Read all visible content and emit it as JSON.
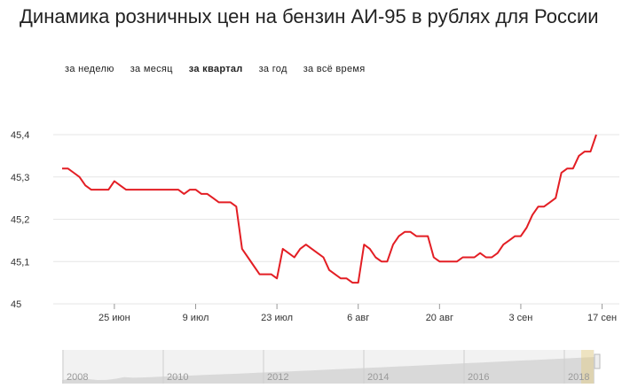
{
  "title": "Динамика розничных цен на бензин АИ-95 в рублях для России",
  "tabs": [
    "за неделю",
    "за месяц",
    "за квартал",
    "за год",
    "за всё время"
  ],
  "active_tab": 2,
  "navigator": {
    "years": [
      "2008",
      "2010",
      "2012",
      "2014",
      "2016",
      "2018"
    ]
  },
  "colors": {
    "line": "#e31e24",
    "grid": "#e6e6e6",
    "navigator_fill": "#d9d9d9"
  },
  "chart_data": {
    "type": "line",
    "title": "Динамика розничных цен на бензин АИ-95 в рублях для России",
    "xlabel": "",
    "ylabel": "",
    "ylim": [
      45.0,
      45.4
    ],
    "yticks": [
      "45",
      "45,1",
      "45,2",
      "45,3",
      "45,4"
    ],
    "xticks": [
      {
        "label": "25 июн",
        "day": 9
      },
      {
        "label": "9 июл",
        "day": 23
      },
      {
        "label": "23 июл",
        "day": 37
      },
      {
        "label": "6 авг",
        "day": 51
      },
      {
        "label": "20 авг",
        "day": 65
      },
      {
        "label": "3 сен",
        "day": 79
      },
      {
        "label": "17 сен",
        "day": 93
      }
    ],
    "grid": true,
    "series": [
      {
        "values": [
          [
            0,
            45.32
          ],
          [
            1,
            45.32
          ],
          [
            2,
            45.31
          ],
          [
            3,
            45.3
          ],
          [
            4,
            45.28
          ],
          [
            5,
            45.27
          ],
          [
            6,
            45.27
          ],
          [
            7,
            45.27
          ],
          [
            8,
            45.27
          ],
          [
            9,
            45.29
          ],
          [
            10,
            45.28
          ],
          [
            11,
            45.27
          ],
          [
            12,
            45.27
          ],
          [
            13,
            45.27
          ],
          [
            14,
            45.27
          ],
          [
            15,
            45.27
          ],
          [
            16,
            45.27
          ],
          [
            17,
            45.27
          ],
          [
            18,
            45.27
          ],
          [
            19,
            45.27
          ],
          [
            20,
            45.27
          ],
          [
            21,
            45.26
          ],
          [
            22,
            45.27
          ],
          [
            23,
            45.27
          ],
          [
            24,
            45.26
          ],
          [
            25,
            45.26
          ],
          [
            26,
            45.25
          ],
          [
            27,
            45.24
          ],
          [
            28,
            45.24
          ],
          [
            29,
            45.24
          ],
          [
            30,
            45.23
          ],
          [
            31,
            45.13
          ],
          [
            32,
            45.11
          ],
          [
            33,
            45.09
          ],
          [
            34,
            45.07
          ],
          [
            35,
            45.07
          ],
          [
            36,
            45.07
          ],
          [
            37,
            45.06
          ],
          [
            38,
            45.13
          ],
          [
            39,
            45.12
          ],
          [
            40,
            45.11
          ],
          [
            41,
            45.13
          ],
          [
            42,
            45.14
          ],
          [
            43,
            45.13
          ],
          [
            44,
            45.12
          ],
          [
            45,
            45.11
          ],
          [
            46,
            45.08
          ],
          [
            47,
            45.07
          ],
          [
            48,
            45.06
          ],
          [
            49,
            45.06
          ],
          [
            50,
            45.05
          ],
          [
            51,
            45.05
          ],
          [
            52,
            45.14
          ],
          [
            53,
            45.13
          ],
          [
            54,
            45.11
          ],
          [
            55,
            45.1
          ],
          [
            56,
            45.1
          ],
          [
            57,
            45.14
          ],
          [
            58,
            45.16
          ],
          [
            59,
            45.17
          ],
          [
            60,
            45.17
          ],
          [
            61,
            45.16
          ],
          [
            62,
            45.16
          ],
          [
            63,
            45.16
          ],
          [
            64,
            45.11
          ],
          [
            65,
            45.1
          ],
          [
            66,
            45.1
          ],
          [
            67,
            45.1
          ],
          [
            68,
            45.1
          ],
          [
            69,
            45.11
          ],
          [
            70,
            45.11
          ],
          [
            71,
            45.11
          ],
          [
            72,
            45.12
          ],
          [
            73,
            45.11
          ],
          [
            74,
            45.11
          ],
          [
            75,
            45.12
          ],
          [
            76,
            45.14
          ],
          [
            77,
            45.15
          ],
          [
            78,
            45.16
          ],
          [
            79,
            45.16
          ],
          [
            80,
            45.18
          ],
          [
            81,
            45.21
          ],
          [
            82,
            45.23
          ],
          [
            83,
            45.23
          ],
          [
            84,
            45.24
          ],
          [
            85,
            45.25
          ],
          [
            86,
            45.31
          ],
          [
            87,
            45.32
          ],
          [
            88,
            45.32
          ],
          [
            89,
            45.35
          ],
          [
            90,
            45.36
          ],
          [
            91,
            45.36
          ],
          [
            92,
            45.4
          ]
        ]
      }
    ]
  }
}
